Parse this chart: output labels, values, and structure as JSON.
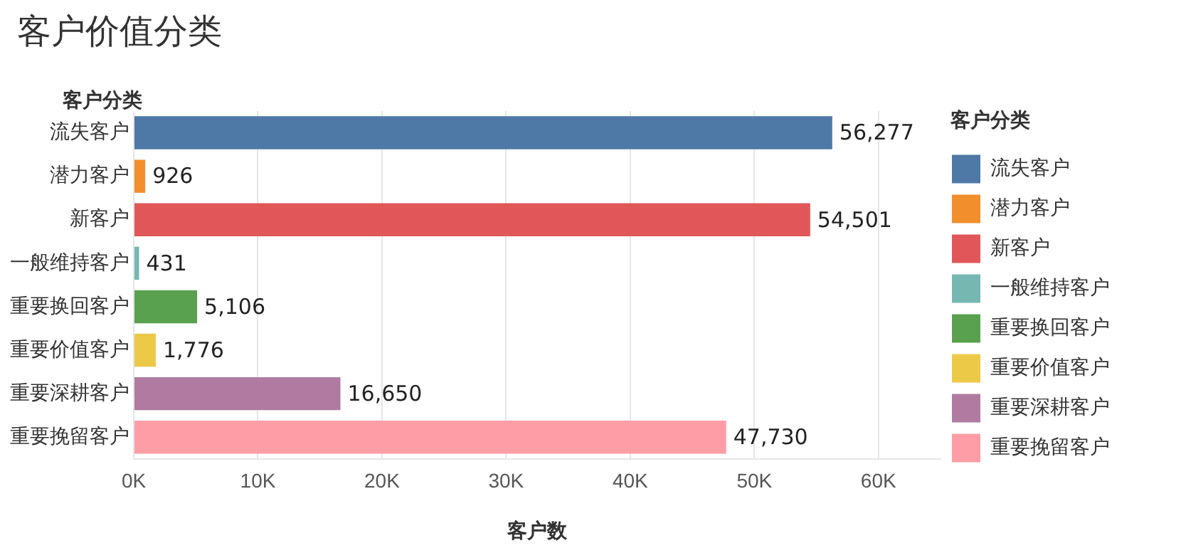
{
  "chart_data": {
    "type": "bar",
    "orientation": "horizontal",
    "title": "客户价值分类",
    "ylabel": "客户分类",
    "xlabel": "客户数",
    "legend_title": "客户分类",
    "categories": [
      "流失客户",
      "潜力客户",
      "新客户",
      "一般维持客户",
      "重要换回客户",
      "重要价值客户",
      "重要深耕客户",
      "重要挽留客户"
    ],
    "series": [
      {
        "name": "流失客户",
        "color": "#4e79a7",
        "values": [
          56277,
          null,
          null,
          null,
          null,
          null,
          null,
          null
        ],
        "value_labels": [
          "56,277",
          null,
          null,
          null,
          null,
          null,
          null,
          null
        ]
      },
      {
        "name": "潜力客户",
        "color": "#f28e2b",
        "values": [
          null,
          926,
          null,
          null,
          null,
          null,
          null,
          null
        ],
        "value_labels": [
          null,
          "926",
          null,
          null,
          null,
          null,
          null,
          null
        ]
      },
      {
        "name": "新客户",
        "color": "#e15759",
        "values": [
          null,
          null,
          54501,
          null,
          null,
          null,
          null,
          null
        ],
        "value_labels": [
          null,
          null,
          "54,501",
          null,
          null,
          null,
          null,
          null
        ]
      },
      {
        "name": "一般维持客户",
        "color": "#76b7b2",
        "values": [
          null,
          null,
          null,
          431,
          null,
          null,
          null,
          null
        ],
        "value_labels": [
          null,
          null,
          null,
          "431",
          null,
          null,
          null,
          null
        ]
      },
      {
        "name": "重要换回客户",
        "color": "#59a14f",
        "values": [
          null,
          null,
          null,
          null,
          5106,
          null,
          null,
          null
        ],
        "value_labels": [
          null,
          null,
          null,
          null,
          "5,106",
          null,
          null,
          null
        ]
      },
      {
        "name": "重要价值客户",
        "color": "#edc948",
        "values": [
          null,
          null,
          null,
          null,
          null,
          1776,
          null,
          null
        ],
        "value_labels": [
          null,
          null,
          null,
          null,
          null,
          "1,776",
          null,
          null
        ]
      },
      {
        "name": "重要深耕客户",
        "color": "#b07aa1",
        "values": [
          null,
          null,
          null,
          null,
          null,
          null,
          16650,
          null
        ],
        "value_labels": [
          null,
          null,
          null,
          null,
          null,
          null,
          "16,650",
          null
        ]
      },
      {
        "name": "重要挽留客户",
        "color": "#ff9da7",
        "values": [
          null,
          null,
          null,
          null,
          null,
          null,
          null,
          47730
        ],
        "value_labels": [
          null,
          null,
          null,
          null,
          null,
          null,
          null,
          "47,730"
        ]
      }
    ],
    "xlim": [
      0,
      65000
    ],
    "xticks": [
      {
        "value": 0,
        "label": "0K"
      },
      {
        "value": 10000,
        "label": "10K"
      },
      {
        "value": 20000,
        "label": "20K"
      },
      {
        "value": 30000,
        "label": "30K"
      },
      {
        "value": 40000,
        "label": "40K"
      },
      {
        "value": 50000,
        "label": "50K"
      },
      {
        "value": 60000,
        "label": "60K"
      }
    ],
    "grid": "x",
    "legend": "right"
  }
}
